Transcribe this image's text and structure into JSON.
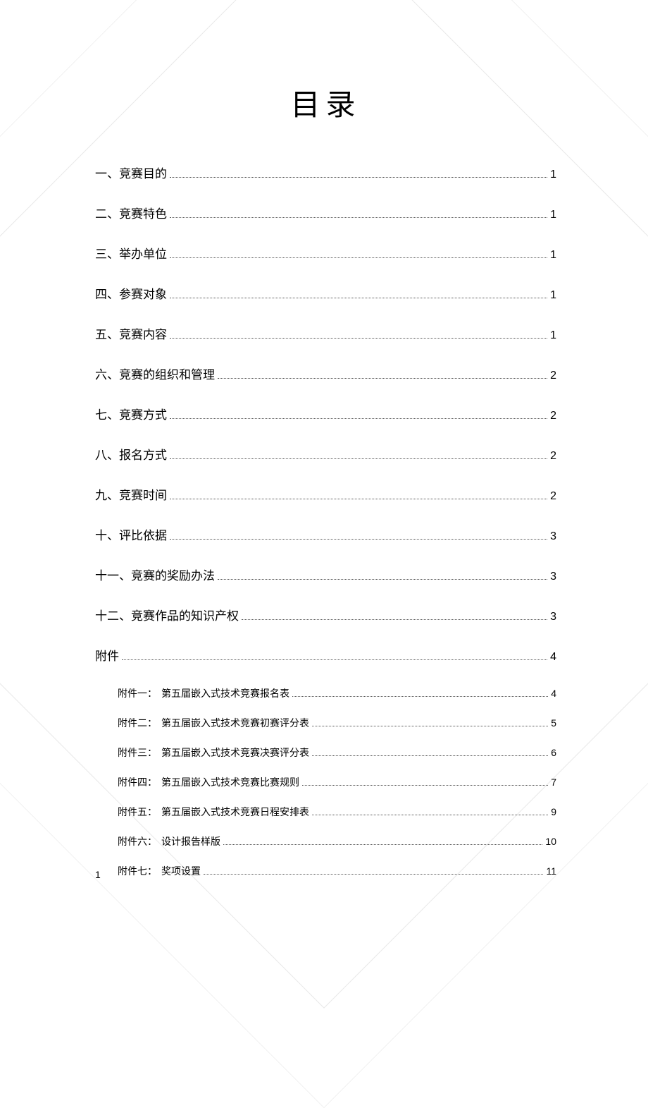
{
  "title": "目录",
  "toc": {
    "main": [
      {
        "label": "一、竞赛目的",
        "page": "1"
      },
      {
        "label": "二、竞赛特色",
        "page": "1"
      },
      {
        "label": "三、举办单位",
        "page": "1"
      },
      {
        "label": "四、参赛对象",
        "page": "1"
      },
      {
        "label": "五、竞赛内容",
        "page": "1"
      },
      {
        "label": "六、竞赛的组织和管理",
        "page": "2"
      },
      {
        "label": "七、竞赛方式",
        "page": "2"
      },
      {
        "label": "八、报名方式",
        "page": "2"
      },
      {
        "label": "九、竞赛时间",
        "page": "2"
      },
      {
        "label": "十、评比依据",
        "page": "3"
      },
      {
        "label": "十一、竞赛的奖励办法",
        "page": "3"
      },
      {
        "label": "十二、竞赛作品的知识产权",
        "page": "3"
      },
      {
        "label": "附件",
        "page": "4"
      }
    ],
    "sub": [
      {
        "prefix": "附件一：",
        "label": "第五届嵌入式技术竞赛报名表",
        "page": "4"
      },
      {
        "prefix": "附件二：",
        "label": "第五届嵌入式技术竞赛初赛评分表",
        "page": "5"
      },
      {
        "prefix": "附件三：",
        "label": "第五届嵌入式技术竞赛决赛评分表",
        "page": "6"
      },
      {
        "prefix": "附件四：",
        "label": "第五届嵌入式技术竞赛比赛规则",
        "page": "7"
      },
      {
        "prefix": "附件五：",
        "label": "第五届嵌入式技术竞赛日程安排表",
        "page": "9"
      },
      {
        "prefix": "附件六：",
        "label": "设计报告样版",
        "page": "10"
      },
      {
        "prefix": "附件七：",
        "label": "奖项设置",
        "page": "11"
      }
    ]
  },
  "page_number": "1",
  "colors": {
    "text": "#000000",
    "background": "#ffffff",
    "leader": "#555555",
    "watermark_border": "#e8e8e8"
  },
  "typography": {
    "title_fontsize": 42,
    "main_fontsize": 17,
    "sub_fontsize": 14,
    "font_family": "SimSun"
  }
}
